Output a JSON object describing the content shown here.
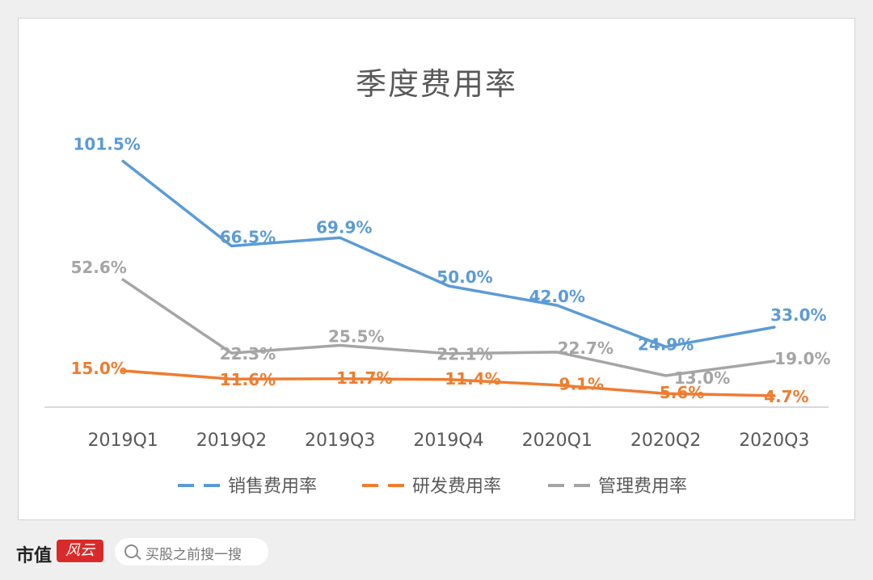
{
  "chart_data": {
    "type": "line",
    "title": "季度费用率",
    "categories": [
      "2019Q1",
      "2019Q2",
      "2019Q3",
      "2019Q4",
      "2020Q1",
      "2020Q2",
      "2020Q3"
    ],
    "ylim": [
      0,
      110
    ],
    "grid": false,
    "legend_position": "bottom",
    "series": [
      {
        "name": "销售费用率",
        "color": "#5b9bd5",
        "values": [
          101.5,
          66.5,
          69.9,
          50.0,
          42.0,
          24.9,
          33.0
        ],
        "labels": [
          "101.5%",
          "66.5%",
          "69.9%",
          "50.0%",
          "42.0%",
          "24.9%",
          "33.0%"
        ]
      },
      {
        "name": "研发费用率",
        "color": "#ed7d31",
        "values": [
          15.0,
          11.6,
          11.7,
          11.4,
          9.1,
          5.6,
          4.7
        ],
        "labels": [
          "15.0%",
          "11.6%",
          "11.7%",
          "11.4%",
          "9.1%",
          "5.6%",
          "4.7%"
        ]
      },
      {
        "name": "管理费用率",
        "color": "#a5a5a5",
        "values": [
          52.6,
          22.3,
          25.5,
          22.1,
          22.7,
          13.0,
          19.0
        ],
        "labels": [
          "52.6%",
          "22.3%",
          "25.5%",
          "22.1%",
          "22.7%",
          "13.0%",
          "19.0%"
        ]
      }
    ]
  },
  "brand": {
    "name": "市值",
    "logo_text": "风云",
    "search_placeholder": "买股之前搜一搜"
  }
}
